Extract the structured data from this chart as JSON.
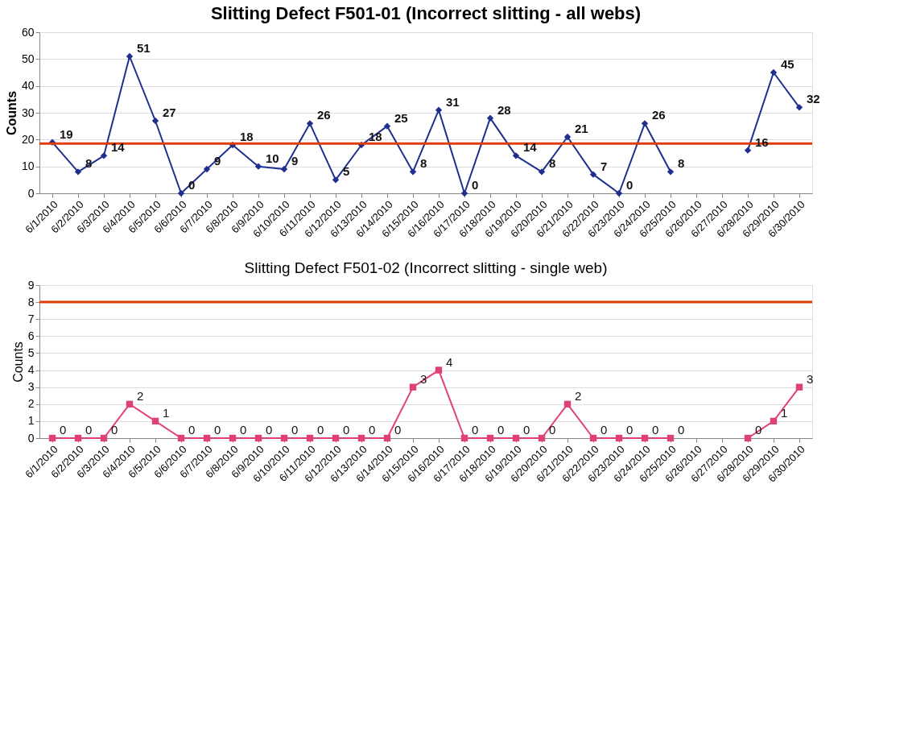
{
  "chart_data": [
    {
      "type": "line",
      "title": "Slitting Defect  F501-01 (Incorrect slitting - all webs)",
      "ylabel": "Counts",
      "categories": [
        "6/1/2010",
        "6/2/2010",
        "6/3/2010",
        "6/4/2010",
        "6/5/2010",
        "6/6/2010",
        "6/7/2010",
        "6/8/2010",
        "6/9/2010",
        "6/10/2010",
        "6/11/2010",
        "6/12/2010",
        "6/13/2010",
        "6/14/2010",
        "6/15/2010",
        "6/16/2010",
        "6/17/2010",
        "6/18/2010",
        "6/19/2010",
        "6/20/2010",
        "6/21/2010",
        "6/22/2010",
        "6/23/2010",
        "6/24/2010",
        "6/25/2010",
        "6/26/2010",
        "6/27/2010",
        "6/28/2010",
        "6/29/2010",
        "6/30/2010"
      ],
      "series": [
        {
          "color": "#1f2f8f",
          "values": [
            19,
            8,
            14,
            51,
            27,
            0,
            9,
            18,
            10,
            9,
            26,
            5,
            18,
            25,
            8,
            31,
            0,
            28,
            14,
            8,
            21,
            7,
            0,
            26,
            8,
            null,
            null,
            16,
            45,
            32
          ]
        }
      ],
      "ylim": [
        0,
        60
      ],
      "yticks": [
        0,
        10,
        20,
        30,
        40,
        50,
        60
      ],
      "grid": "y",
      "marker": "diamond",
      "data_labels": true,
      "legend": false,
      "ref_lines": [
        {
          "axis": "y",
          "value": 18.5,
          "color": "#e03c00"
        }
      ]
    },
    {
      "type": "line",
      "title": "Slitting Defect F501-02 (Incorrect slitting - single web)",
      "ylabel": "Counts",
      "categories": [
        "6/1/2010",
        "6/2/2010",
        "6/3/2010",
        "6/4/2010",
        "6/5/2010",
        "6/6/2010",
        "6/7/2010",
        "6/8/2010",
        "6/9/2010",
        "6/10/2010",
        "6/11/2010",
        "6/12/2010",
        "6/13/2010",
        "6/14/2010",
        "6/15/2010",
        "6/16/2010",
        "6/17/2010",
        "6/18/2010",
        "6/19/2010",
        "6/20/2010",
        "6/21/2010",
        "6/22/2010",
        "6/23/2010",
        "6/24/2010",
        "6/25/2010",
        "6/26/2010",
        "6/27/2010",
        "6/28/2010",
        "6/29/2010",
        "6/30/2010"
      ],
      "series": [
        {
          "color": "#e0407a",
          "values": [
            0,
            0,
            0,
            2,
            1,
            0,
            0,
            0,
            0,
            0,
            0,
            0,
            0,
            0,
            3,
            4,
            0,
            0,
            0,
            0,
            2,
            0,
            0,
            0,
            0,
            null,
            null,
            0,
            1,
            3
          ]
        }
      ],
      "ylim": [
        0,
        9
      ],
      "yticks": [
        0,
        1,
        2,
        3,
        4,
        5,
        6,
        7,
        8,
        9
      ],
      "grid": "y",
      "marker": "square",
      "data_labels": true,
      "legend": false,
      "ref_lines": [
        {
          "axis": "y",
          "value": 8,
          "color": "#e03c00"
        }
      ]
    }
  ]
}
